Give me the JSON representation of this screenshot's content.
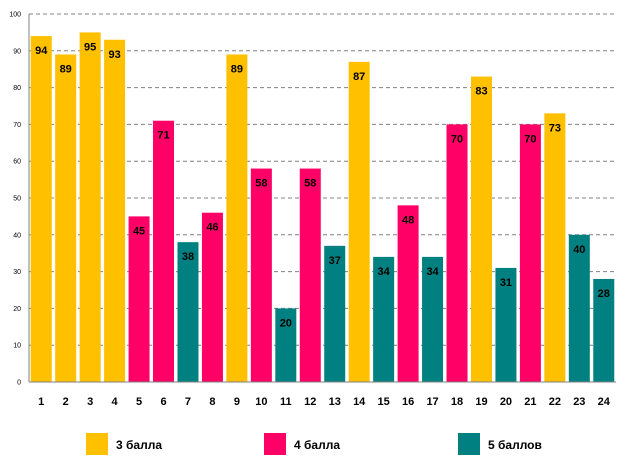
{
  "chart_data": {
    "type": "bar",
    "title": "",
    "xlabel": "",
    "ylabel": "",
    "ylim": [
      0,
      100
    ],
    "ytick_step": 10,
    "grid": true,
    "categories": [
      "1",
      "2",
      "3",
      "4",
      "5",
      "6",
      "7",
      "8",
      "9",
      "10",
      "11",
      "12",
      "13",
      "14",
      "15",
      "16",
      "17",
      "18",
      "19",
      "20",
      "21",
      "22",
      "23",
      "24"
    ],
    "values": [
      94,
      89,
      95,
      93,
      45,
      71,
      38,
      46,
      89,
      58,
      20,
      58,
      37,
      87,
      34,
      48,
      34,
      70,
      83,
      31,
      70,
      73,
      40,
      28
    ],
    "groups": [
      0,
      0,
      0,
      0,
      1,
      1,
      2,
      1,
      0,
      1,
      2,
      1,
      2,
      0,
      2,
      1,
      2,
      1,
      0,
      2,
      1,
      0,
      2,
      2
    ],
    "legend_position": "bottom",
    "legend": [
      {
        "label": "3 балла",
        "color": "#FFC000"
      },
      {
        "label": "4 балла",
        "color": "#FF0066"
      },
      {
        "label": "5 баллов",
        "color": "#008080"
      }
    ]
  }
}
